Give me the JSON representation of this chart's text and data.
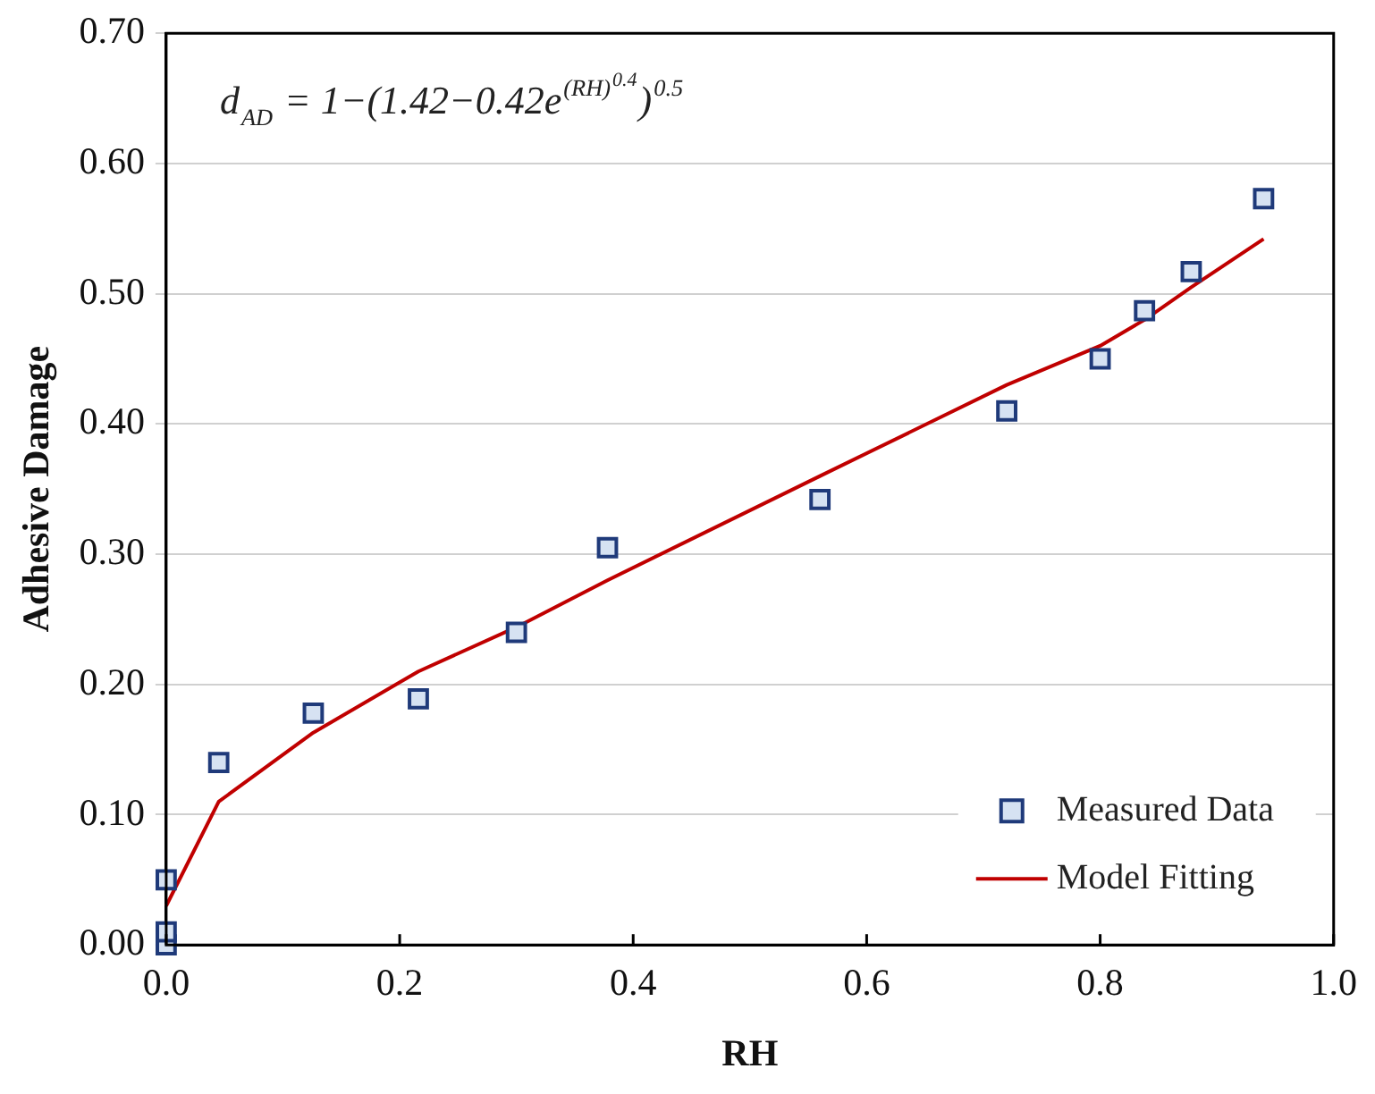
{
  "chart_data": {
    "type": "scatter",
    "xlabel": "RH",
    "ylabel": "Adhesive Damage",
    "annotations": [
      "d$_{AD}$ = 1−(1.42−0.42e$^{(RH)}$$^{0.4}$)$^{0.5}$"
    ],
    "xlim": [
      0,
      1
    ],
    "xticks": [
      {
        "value": 0,
        "label": "0.0"
      },
      0.2,
      0.4,
      0.6,
      0.8,
      {
        "value": 1,
        "label": "1.0"
      }
    ],
    "ylim": [
      0,
      0.7
    ],
    "yticks": [
      {
        "value": 0,
        "label": "0.00"
      },
      {
        "value": 0.1,
        "label": "0.10"
      },
      {
        "value": 0.2,
        "label": "0.20"
      },
      {
        "value": 0.3,
        "label": "0.30"
      },
      {
        "value": 0.4,
        "label": "0.40"
      },
      {
        "value": 0.5,
        "label": "0.50"
      },
      {
        "value": 0.6,
        "label": "0.60"
      },
      {
        "value": 0.7,
        "label": "0.70"
      }
    ],
    "grid": "y",
    "legend": "bottom right",
    "series": [
      {
        "name": "Measured Data",
        "marker": "square",
        "color": "#1f3a7a",
        "x": [
          0,
          0,
          0,
          0.045,
          0.126,
          0.216,
          0.3,
          0.378,
          0.56,
          0.72,
          0.8,
          0.838,
          0.878,
          0.94
        ],
        "values": [
          0,
          0.01,
          0.05,
          0.14,
          0.178,
          0.189,
          0.24,
          0.305,
          0.342,
          0.41,
          0.45,
          0.487,
          0.517,
          0.573
        ]
      },
      {
        "name": "Model Fitting",
        "type": "line",
        "marker": "none",
        "line_style": "solid",
        "color": "#c00000",
        "x": [
          0,
          0.045,
          0.126,
          0.216,
          0.3,
          0.378,
          0.56,
          0.72,
          0.8,
          0.838,
          0.878,
          0.94
        ],
        "values": [
          0.03,
          0.11,
          0.163,
          0.21,
          0.244,
          0.28,
          0.36,
          0.43,
          0.46,
          0.48,
          0.505,
          0.542
        ]
      }
    ]
  }
}
